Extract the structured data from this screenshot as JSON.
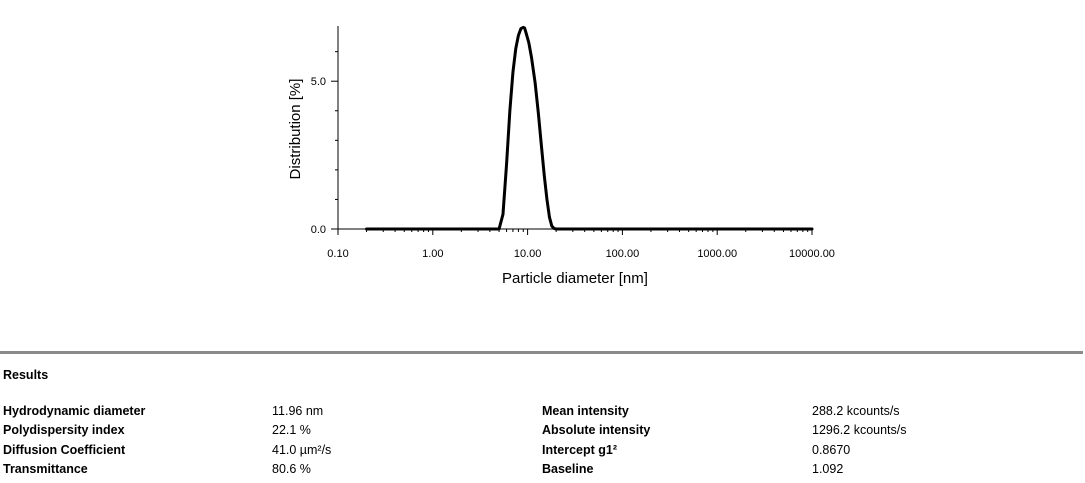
{
  "chart_data": {
    "type": "line",
    "xlabel": "Particle diameter [nm]",
    "ylabel": "Distribution [%]",
    "xscale": "log",
    "xlim": [
      0.1,
      10000
    ],
    "ylim": [
      0,
      6.8
    ],
    "x_ticks": [
      0.1,
      1,
      10,
      100,
      1000,
      10000
    ],
    "x_tick_labels": [
      "0.10",
      "1.00",
      "10.00",
      "100.00",
      "1000.00",
      "10000.00"
    ],
    "y_ticks": [
      0,
      5
    ],
    "y_tick_labels": [
      "0.0",
      "5.0"
    ],
    "grid": false,
    "series": [
      {
        "color": "#000000",
        "x": [
          0.2,
          1,
          3,
          5.0,
          5.5,
          6.0,
          6.5,
          7.0,
          7.5,
          8.0,
          8.5,
          9.0,
          9.3,
          9.7,
          10.3,
          11.0,
          12.0,
          13.0,
          14.0,
          15.0,
          16.0,
          17.0,
          18.0,
          19.0,
          20.0,
          30,
          100,
          1000,
          10000
        ],
        "y": [
          0,
          0,
          0,
          0,
          0.5,
          2.2,
          4.0,
          5.3,
          6.1,
          6.55,
          6.78,
          6.82,
          6.8,
          6.6,
          6.3,
          5.8,
          4.95,
          3.9,
          2.8,
          1.8,
          1.0,
          0.4,
          0.1,
          0.02,
          0,
          0,
          0,
          0,
          0
        ]
      }
    ]
  },
  "results": {
    "heading": "Results",
    "rows": [
      {
        "label1": "Hydrodynamic diameter",
        "value1": "11.96 nm",
        "label2": "Mean intensity",
        "value2": "288.2 kcounts/s"
      },
      {
        "label1": "Polydispersity index",
        "value1": "22.1 %",
        "label2": "Absolute intensity",
        "value2": "1296.2 kcounts/s"
      },
      {
        "label1": "Diffusion Coefficient",
        "value1": "41.0 µm²/s",
        "label2": "Intercept g1²",
        "value2": "0.8670"
      },
      {
        "label1": "Transmittance",
        "value1": "80.6 %",
        "label2": "Baseline",
        "value2": "1.092"
      }
    ]
  }
}
